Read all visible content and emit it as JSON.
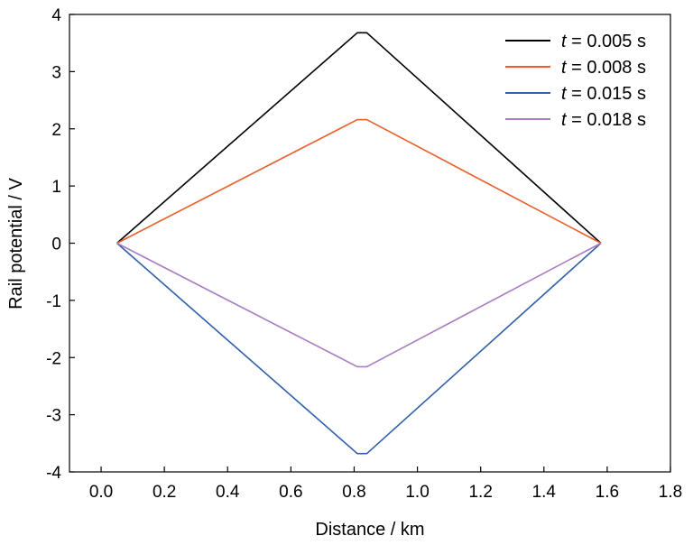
{
  "chart_data": {
    "type": "line",
    "xlabel": "Distance / km",
    "ylabel": "Rail potential / V",
    "xlim": [
      -0.1,
      1.8
    ],
    "ylim": [
      -4,
      4
    ],
    "xticks": [
      0.0,
      0.2,
      0.4,
      0.6,
      0.8,
      1.0,
      1.2,
      1.4,
      1.6,
      1.8
    ],
    "xtick_labels": [
      "0.0",
      "0.2",
      "0.4",
      "0.6",
      "0.8",
      "1.0",
      "1.2",
      "1.4",
      "1.6",
      "1.8"
    ],
    "yticks": [
      -4,
      -3,
      -2,
      -1,
      0,
      1,
      2,
      3,
      4
    ],
    "ytick_labels": [
      "-4",
      "-3",
      "-2",
      "-1",
      "0",
      "1",
      "2",
      "3",
      "4"
    ],
    "grid": false,
    "legend_position": "top-right",
    "series": [
      {
        "name": "t = 0.005 s",
        "legend_var": "t",
        "legend_rest": " = 0.005 s",
        "color": "#000000",
        "x": [
          0.05,
          0.81,
          0.84,
          1.58
        ],
        "y": [
          0,
          3.68,
          3.68,
          0
        ]
      },
      {
        "name": "t = 0.008 s",
        "legend_var": "t",
        "legend_rest": " = 0.008 s",
        "color": "#e8602c",
        "x": [
          0.05,
          0.81,
          0.84,
          1.58
        ],
        "y": [
          0,
          2.16,
          2.16,
          0
        ]
      },
      {
        "name": "t = 0.015 s",
        "legend_var": "t",
        "legend_rest": " = 0.015 s",
        "color": "#2f5fa8",
        "x": [
          0.05,
          0.81,
          0.84,
          1.58
        ],
        "y": [
          0,
          -3.68,
          -3.68,
          0
        ]
      },
      {
        "name": "t = 0.018 s",
        "legend_var": "t",
        "legend_rest": " = 0.018 s",
        "color": "#a87dc2",
        "x": [
          0.05,
          0.81,
          0.84,
          1.58
        ],
        "y": [
          0,
          -2.16,
          -2.16,
          0
        ]
      }
    ]
  }
}
